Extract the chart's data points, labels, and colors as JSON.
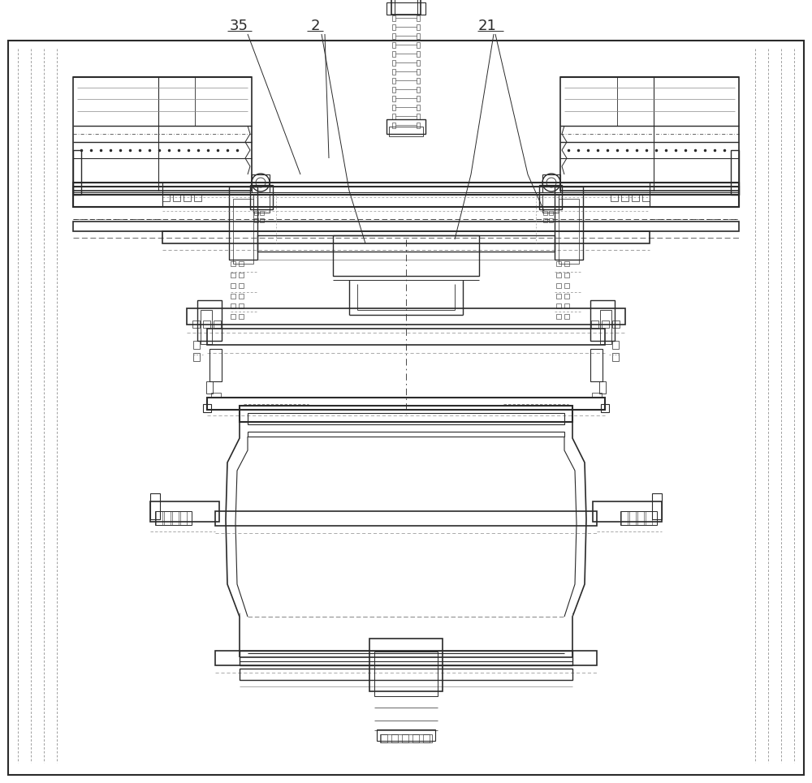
{
  "bg_color": "#ffffff",
  "lc": "#2a2a2a",
  "lc_med": "#444444",
  "lc_light": "#888888",
  "lc_dashed": "#555555"
}
